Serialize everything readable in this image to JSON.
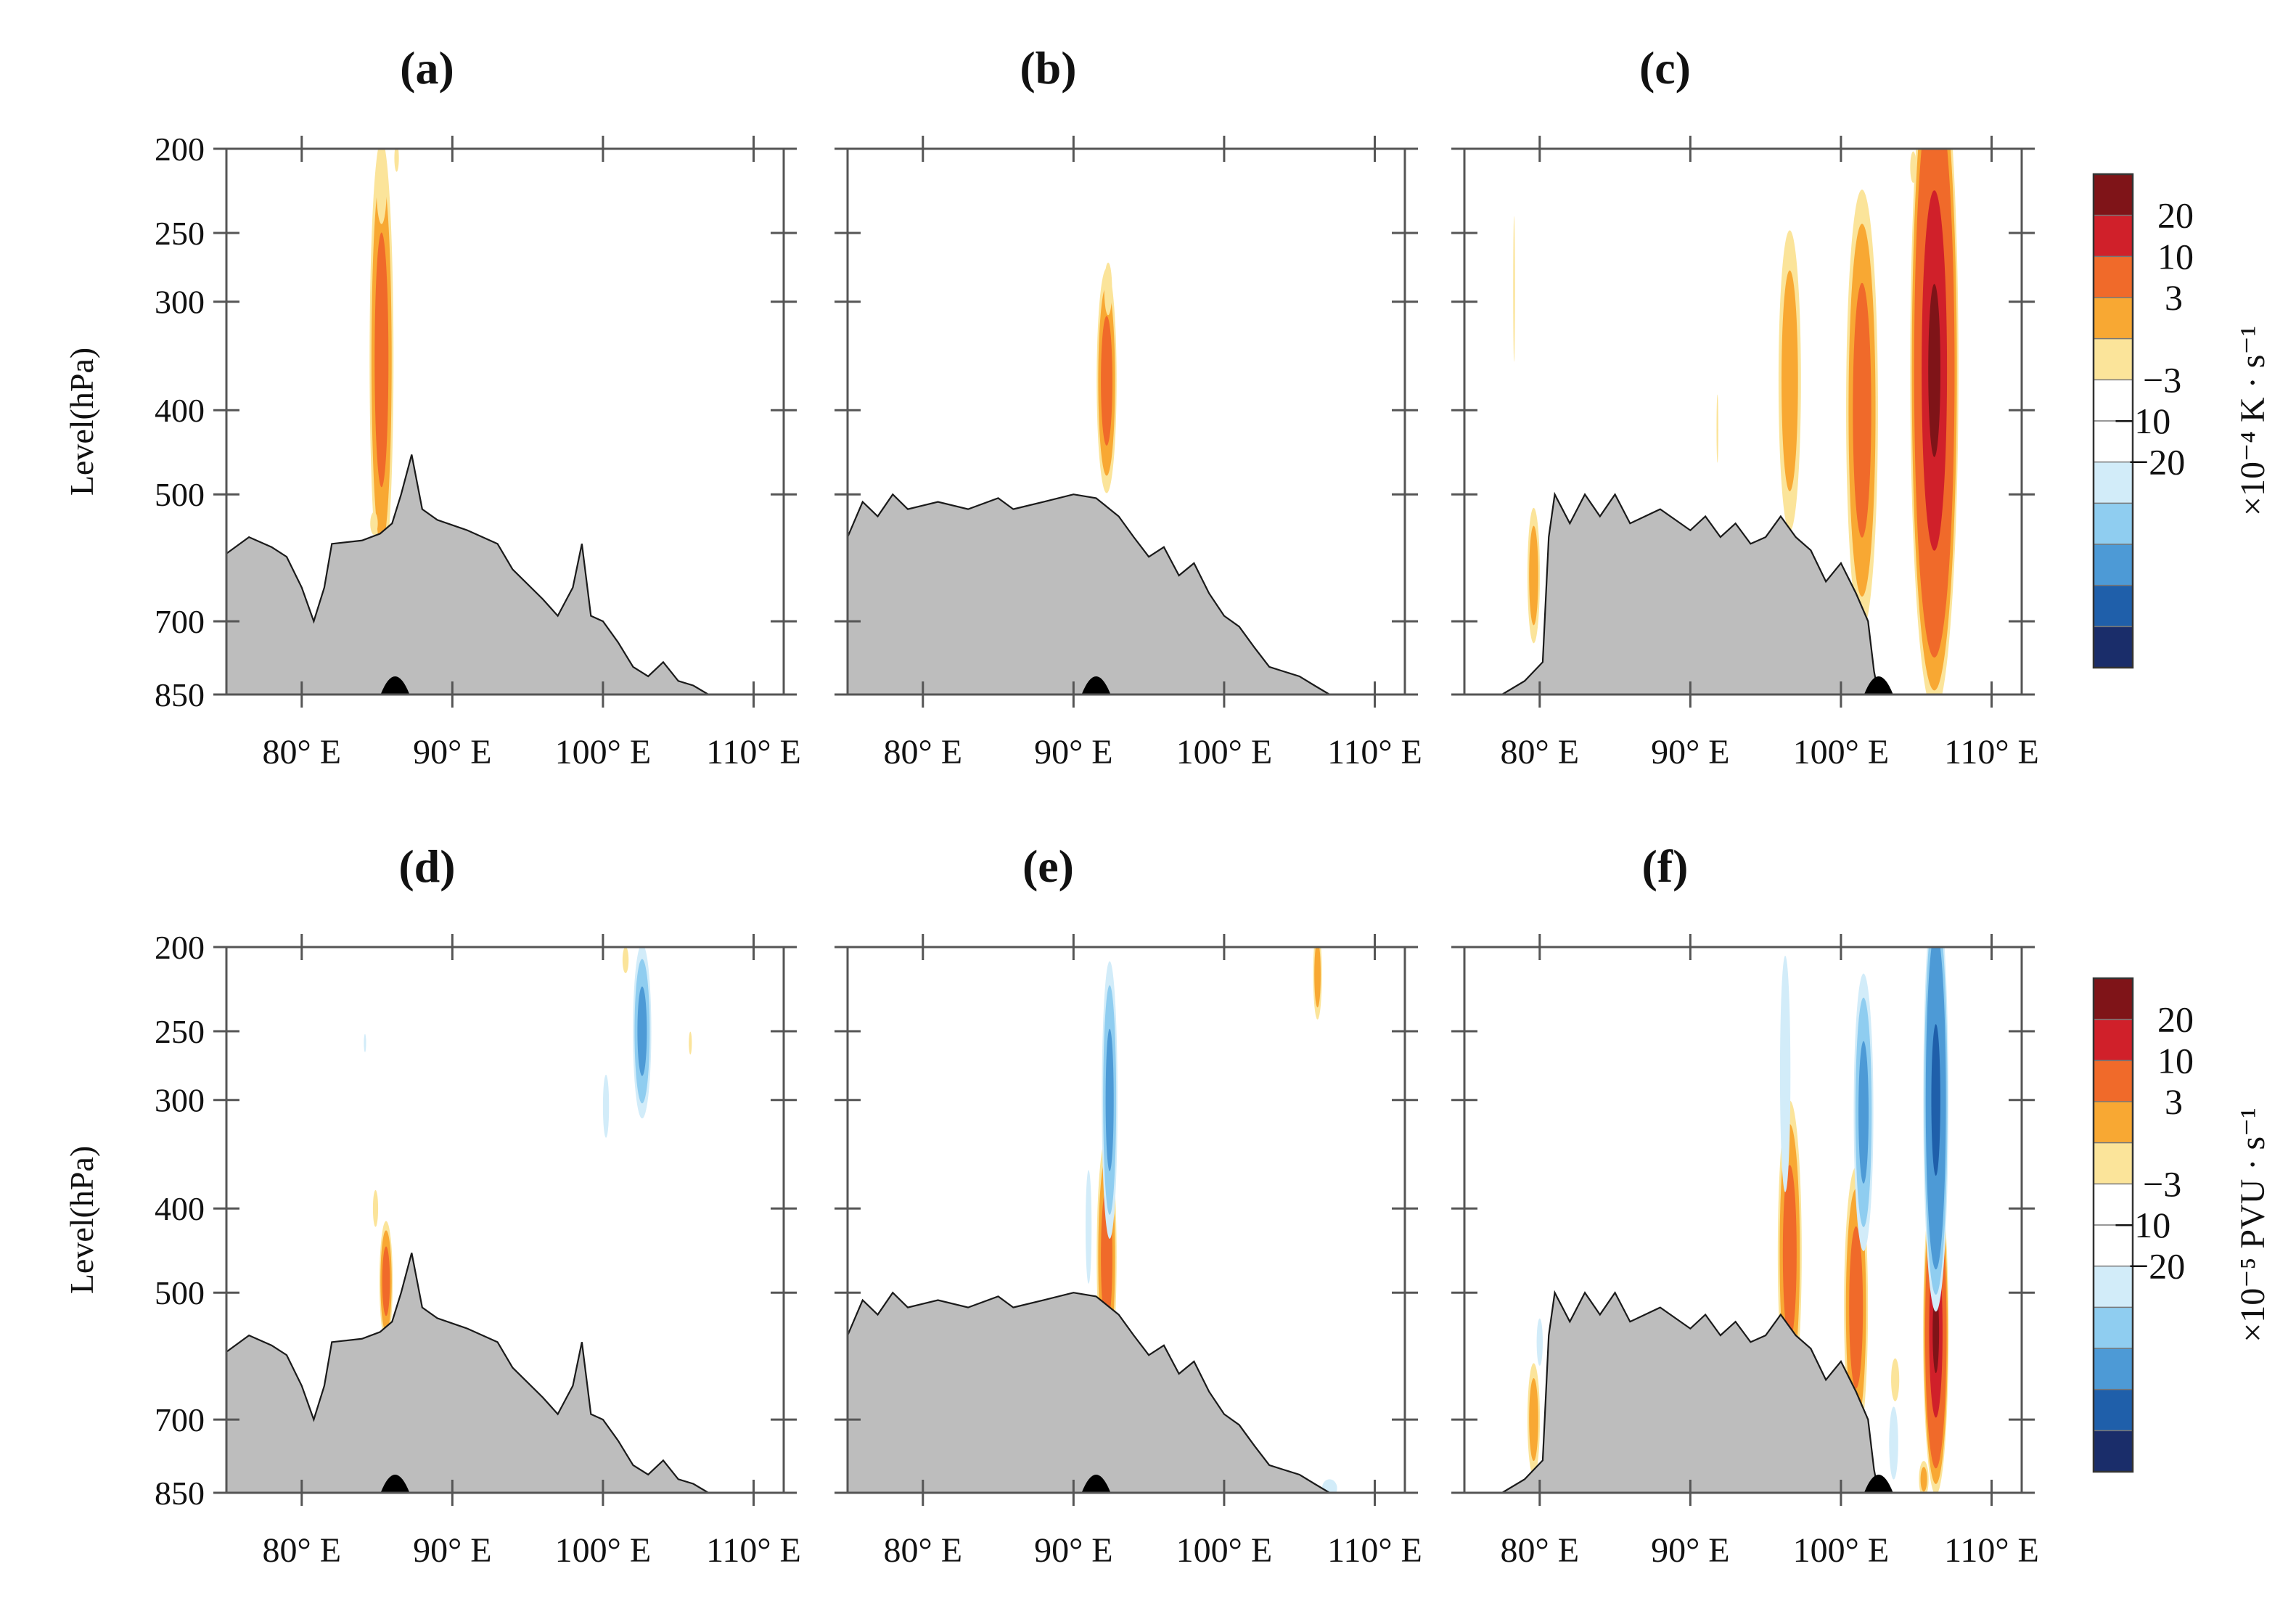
{
  "chart_data": {
    "type": "heatmap",
    "title": "",
    "layout": "2 rows x 3 columns of longitude-pressure cross sections",
    "x_axis": {
      "range": [
        75,
        112
      ],
      "ticks": [
        80,
        90,
        100,
        110
      ],
      "tick_labels": [
        "80° E",
        "90° E",
        "100° E",
        "110° E"
      ]
    },
    "y_axis": {
      "label": "Level(hPa)",
      "range": [
        850,
        200
      ],
      "ticks": [
        200,
        250,
        300,
        400,
        500,
        700,
        850
      ],
      "tick_labels": [
        "200",
        "250",
        "300",
        "400",
        "500",
        "700",
        "850"
      ]
    },
    "colorbars": [
      {
        "row": 0,
        "unit_label": "×10⁻⁴ K · s⁻¹",
        "levels": [
          -30,
          -20,
          -10,
          -3,
          3,
          10,
          20,
          30
        ],
        "tick_labels": [
          "20",
          "10",
          "3",
          "−3",
          "−10",
          "−20"
        ],
        "colors": [
          "#7f1418",
          "#d0202a",
          "#f06a2a",
          "#f8a833",
          "#fbe49a",
          "#ffffff",
          "#ffffff",
          "#d2ecf9",
          "#8fcdf0",
          "#4d9ad6",
          "#1f5faa",
          "#1a2d6a"
        ]
      },
      {
        "row": 1,
        "unit_label": "×10⁻⁵ PVU · s⁻¹",
        "levels": [
          -30,
          -20,
          -10,
          -3,
          3,
          10,
          20,
          30
        ],
        "tick_labels": [
          "20",
          "10",
          "3",
          "−3",
          "−10",
          "−20"
        ],
        "colors": [
          "#7f1418",
          "#d0202a",
          "#f06a2a",
          "#f8a833",
          "#fbe49a",
          "#ffffff",
          "#ffffff",
          "#d2ecf9",
          "#8fcdf0",
          "#4d9ad6",
          "#1f5faa",
          "#1a2d6a"
        ]
      }
    ],
    "panels": [
      {
        "label": "(a)",
        "row": 0,
        "col": 0,
        "marker_lon": 86.2,
        "terrain": [
          [
            75,
            585
          ],
          [
            76.5,
            560
          ],
          [
            78,
            575
          ],
          [
            79,
            590
          ],
          [
            80,
            640
          ],
          [
            80.8,
            700
          ],
          [
            81.5,
            640
          ],
          [
            82,
            570
          ],
          [
            84,
            565
          ],
          [
            85.2,
            555
          ],
          [
            86,
            540
          ],
          [
            86.6,
            500
          ],
          [
            87.3,
            450
          ],
          [
            88,
            520
          ],
          [
            89,
            535
          ],
          [
            91,
            550
          ],
          [
            93,
            570
          ],
          [
            94,
            610
          ],
          [
            96,
            660
          ],
          [
            97,
            690
          ],
          [
            98,
            640
          ],
          [
            98.6,
            570
          ],
          [
            99.2,
            690
          ],
          [
            100,
            700
          ],
          [
            101,
            740
          ],
          [
            102,
            790
          ],
          [
            103,
            810
          ],
          [
            104,
            780
          ],
          [
            105,
            820
          ],
          [
            106,
            830
          ],
          [
            107,
            850
          ],
          [
            112,
            850
          ]
        ],
        "blobs": [
          {
            "lon": 85.3,
            "p": 350,
            "a": 5.5,
            "b": 0.9,
            "v": 13
          },
          {
            "lon": 85.3,
            "p": 220,
            "a": 1.5,
            "b": 0.6,
            "v": 4
          },
          {
            "lon": 86.3,
            "p": 205,
            "a": 0.6,
            "b": 0.3,
            "v": 3.5
          },
          {
            "lon": 84.8,
            "p": 540,
            "a": 0.5,
            "b": 0.5,
            "v": 3.5
          },
          {
            "lon": 92.5,
            "p": 580,
            "a": 0.4,
            "b": 0.3,
            "v": 3.5
          }
        ]
      },
      {
        "label": "(b)",
        "row": 0,
        "col": 1,
        "marker_lon": 91.5,
        "terrain": [
          [
            75,
            560
          ],
          [
            76,
            510
          ],
          [
            77,
            530
          ],
          [
            78,
            500
          ],
          [
            79,
            520
          ],
          [
            81,
            510
          ],
          [
            83,
            520
          ],
          [
            85,
            505
          ],
          [
            86,
            520
          ],
          [
            88,
            510
          ],
          [
            90,
            500
          ],
          [
            91.5,
            505
          ],
          [
            93,
            530
          ],
          [
            94,
            560
          ],
          [
            95,
            590
          ],
          [
            96,
            575
          ],
          [
            97,
            620
          ],
          [
            98,
            600
          ],
          [
            99,
            650
          ],
          [
            100,
            690
          ],
          [
            101,
            710
          ],
          [
            102,
            750
          ],
          [
            103,
            790
          ],
          [
            104,
            800
          ],
          [
            105,
            810
          ],
          [
            106,
            830
          ],
          [
            107,
            850
          ],
          [
            112,
            850
          ]
        ],
        "blobs": [
          {
            "lon": 92.2,
            "p": 370,
            "a": 2.8,
            "b": 0.75,
            "v": 13
          },
          {
            "lon": 92.3,
            "p": 290,
            "a": 1.0,
            "b": 0.45,
            "v": 4
          }
        ]
      },
      {
        "label": "(c)",
        "row": 0,
        "col": 2,
        "marker_lon": 102.5,
        "terrain": [
          [
            75,
            850
          ],
          [
            77.5,
            850
          ],
          [
            79,
            820
          ],
          [
            80.2,
            780
          ],
          [
            80.6,
            560
          ],
          [
            81,
            500
          ],
          [
            82,
            540
          ],
          [
            83,
            500
          ],
          [
            84,
            530
          ],
          [
            85,
            500
          ],
          [
            86,
            540
          ],
          [
            88,
            520
          ],
          [
            90,
            550
          ],
          [
            91,
            530
          ],
          [
            92,
            560
          ],
          [
            93,
            540
          ],
          [
            94,
            570
          ],
          [
            95,
            560
          ],
          [
            96,
            530
          ],
          [
            97,
            560
          ],
          [
            98,
            580
          ],
          [
            99,
            630
          ],
          [
            100,
            600
          ],
          [
            101,
            650
          ],
          [
            101.8,
            700
          ],
          [
            102.2,
            800
          ],
          [
            102.5,
            850
          ],
          [
            112,
            850
          ]
        ],
        "blobs": [
          {
            "lon": 106.2,
            "p": 360,
            "a": 8.0,
            "b": 1.7,
            "v": 26
          },
          {
            "lon": 101.4,
            "p": 400,
            "a": 5.5,
            "b": 1.2,
            "v": 13
          },
          {
            "lon": 96.6,
            "p": 370,
            "a": 4.0,
            "b": 0.9,
            "v": 9
          },
          {
            "lon": 79.6,
            "p": 620,
            "a": 1.8,
            "b": 0.5,
            "v": 9
          },
          {
            "lon": 104.8,
            "p": 210,
            "a": 0.6,
            "b": 0.35,
            "v": 4
          },
          {
            "lon": 78.3,
            "p": 290,
            "a": 3.2,
            "b": 0.12,
            "v": 3.5
          },
          {
            "lon": 91.8,
            "p": 420,
            "a": 1.5,
            "b": 0.12,
            "v": 3.5
          }
        ]
      },
      {
        "label": "(d)",
        "row": 1,
        "col": 0,
        "marker_lon": 86.2,
        "terrain": [
          [
            75,
            585
          ],
          [
            76.5,
            560
          ],
          [
            78,
            575
          ],
          [
            79,
            590
          ],
          [
            80,
            640
          ],
          [
            80.8,
            700
          ],
          [
            81.5,
            640
          ],
          [
            82,
            570
          ],
          [
            84,
            565
          ],
          [
            85.2,
            555
          ],
          [
            86,
            540
          ],
          [
            86.6,
            500
          ],
          [
            87.3,
            450
          ],
          [
            88,
            520
          ],
          [
            89,
            535
          ],
          [
            91,
            550
          ],
          [
            93,
            570
          ],
          [
            94,
            610
          ],
          [
            96,
            660
          ],
          [
            97,
            690
          ],
          [
            98,
            640
          ],
          [
            98.6,
            570
          ],
          [
            99.2,
            690
          ],
          [
            100,
            700
          ],
          [
            101,
            740
          ],
          [
            102,
            790
          ],
          [
            103,
            810
          ],
          [
            104,
            780
          ],
          [
            105,
            820
          ],
          [
            106,
            830
          ],
          [
            107,
            850
          ],
          [
            112,
            850
          ]
        ],
        "blobs": [
          {
            "lon": 85.6,
            "p": 485,
            "a": 1.5,
            "b": 0.5,
            "v": 13
          },
          {
            "lon": 84.9,
            "p": 400,
            "a": 0.7,
            "b": 0.3,
            "v": 4
          },
          {
            "lon": 102.6,
            "p": 250,
            "a": 2.2,
            "b": 0.7,
            "v": -12
          },
          {
            "lon": 100.2,
            "p": 305,
            "a": 1.2,
            "b": 0.35,
            "v": -4
          },
          {
            "lon": 101.5,
            "p": 207,
            "a": 0.5,
            "b": 0.35,
            "v": 4
          },
          {
            "lon": 105.8,
            "p": 258,
            "a": 0.5,
            "b": 0.2,
            "v": 3.5
          },
          {
            "lon": 84.2,
            "p": 258,
            "a": 0.4,
            "b": 0.15,
            "v": -3.5
          }
        ]
      },
      {
        "label": "(e)",
        "row": 1,
        "col": 1,
        "marker_lon": 91.5,
        "terrain": [
          [
            75,
            560
          ],
          [
            76,
            510
          ],
          [
            77,
            530
          ],
          [
            78,
            500
          ],
          [
            79,
            520
          ],
          [
            81,
            510
          ],
          [
            83,
            520
          ],
          [
            85,
            505
          ],
          [
            86,
            520
          ],
          [
            88,
            510
          ],
          [
            90,
            500
          ],
          [
            91.5,
            505
          ],
          [
            93,
            530
          ],
          [
            94,
            560
          ],
          [
            95,
            590
          ],
          [
            96,
            575
          ],
          [
            97,
            620
          ],
          [
            98,
            600
          ],
          [
            99,
            650
          ],
          [
            100,
            690
          ],
          [
            101,
            710
          ],
          [
            102,
            750
          ],
          [
            103,
            790
          ],
          [
            104,
            800
          ],
          [
            105,
            810
          ],
          [
            106,
            830
          ],
          [
            107,
            850
          ],
          [
            112,
            850
          ]
        ],
        "blobs": [
          {
            "lon": 92.2,
            "p": 455,
            "a": 3.0,
            "b": 0.75,
            "v": 13
          },
          {
            "lon": 92.4,
            "p": 300,
            "a": 3.5,
            "b": 0.6,
            "v": -12
          },
          {
            "lon": 91.0,
            "p": 420,
            "a": 2.5,
            "b": 0.4,
            "v": -3.5
          },
          {
            "lon": 106.2,
            "p": 215,
            "a": 1.2,
            "b": 0.35,
            "v": 9
          },
          {
            "lon": 107.0,
            "p": 840,
            "a": 0.4,
            "b": 1.0,
            "v": -3.5
          }
        ]
      },
      {
        "label": "(f)",
        "row": 1,
        "col": 2,
        "marker_lon": 102.5,
        "terrain": [
          [
            75,
            850
          ],
          [
            77.5,
            850
          ],
          [
            79,
            820
          ],
          [
            80.2,
            780
          ],
          [
            80.6,
            560
          ],
          [
            81,
            500
          ],
          [
            82,
            540
          ],
          [
            83,
            500
          ],
          [
            84,
            530
          ],
          [
            85,
            500
          ],
          [
            86,
            540
          ],
          [
            88,
            520
          ],
          [
            90,
            550
          ],
          [
            91,
            530
          ],
          [
            92,
            560
          ],
          [
            93,
            540
          ],
          [
            94,
            570
          ],
          [
            95,
            560
          ],
          [
            96,
            530
          ],
          [
            97,
            560
          ],
          [
            98,
            580
          ],
          [
            99,
            630
          ],
          [
            100,
            600
          ],
          [
            101,
            650
          ],
          [
            101.8,
            700
          ],
          [
            102.2,
            800
          ],
          [
            102.5,
            850
          ],
          [
            112,
            850
          ]
        ],
        "blobs": [
          {
            "lon": 106.3,
            "p": 555,
            "a": 3.8,
            "b": 0.9,
            "v": 26
          },
          {
            "lon": 106.3,
            "p": 300,
            "a": 5.0,
            "b": 0.9,
            "v": -22
          },
          {
            "lon": 101.0,
            "p": 520,
            "a": 3.5,
            "b": 0.9,
            "v": 13
          },
          {
            "lon": 96.6,
            "p": 450,
            "a": 3.8,
            "b": 0.9,
            "v": 13
          },
          {
            "lon": 101.5,
            "p": 310,
            "a": 3.5,
            "b": 0.75,
            "v": -12
          },
          {
            "lon": 96.3,
            "p": 280,
            "a": 4.5,
            "b": 0.6,
            "v": -4
          },
          {
            "lon": 79.6,
            "p": 700,
            "a": 1.5,
            "b": 0.5,
            "v": 9
          },
          {
            "lon": 80.0,
            "p": 570,
            "a": 0.9,
            "b": 0.35,
            "v": -4
          },
          {
            "lon": 103.5,
            "p": 745,
            "a": 1.6,
            "b": 0.6,
            "v": -3.5
          },
          {
            "lon": 105.5,
            "p": 820,
            "a": 0.5,
            "b": 0.4,
            "v": 8
          },
          {
            "lon": 103.6,
            "p": 630,
            "a": 0.7,
            "b": 0.4,
            "v": 5
          }
        ]
      }
    ]
  }
}
